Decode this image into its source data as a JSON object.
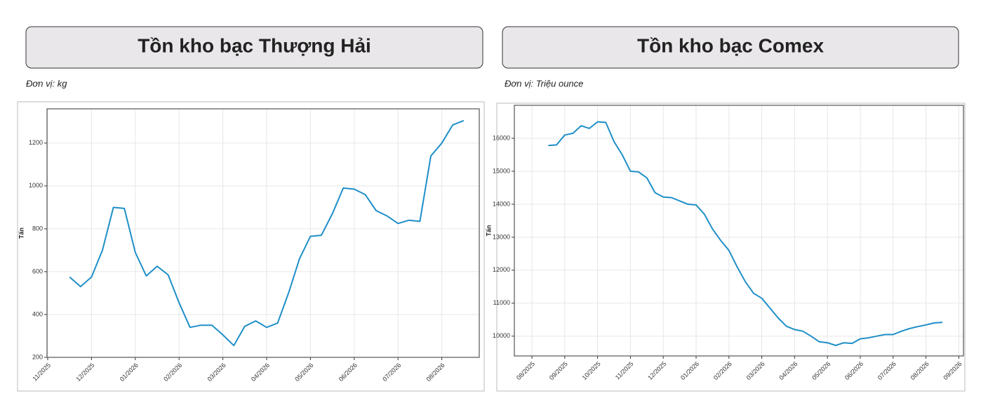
{
  "chart_data": [
    {
      "type": "line",
      "title": "Tồn kho bạc Thượng Hải",
      "subtitle": "Đơn vị: kg",
      "ylabel": "Tấn",
      "categories": [
        "11/2025",
        null,
        null,
        null,
        "12/2025",
        null,
        null,
        null,
        "01/2026",
        null,
        null,
        null,
        "02/2026",
        null,
        null,
        null,
        "03/2026",
        null,
        null,
        null,
        "04/2026",
        null,
        null,
        null,
        "05/2026",
        null,
        null,
        null,
        "06/2026",
        null,
        null,
        null,
        "07/2026",
        null,
        null,
        null,
        "08/2026",
        null,
        null
      ],
      "series": [
        {
          "color": "#1f8fc8",
          "values": [
            null,
            null,
            575,
            530,
            575,
            700,
            900,
            895,
            690,
            580,
            625,
            585,
            455,
            340,
            350,
            350,
            305,
            255,
            345,
            370,
            340,
            360,
            500,
            660,
            765,
            770,
            870,
            990,
            985,
            960,
            885,
            860,
            825,
            840,
            835,
            1140,
            1200,
            1285,
            1305
          ]
        }
      ],
      "ylim": [
        200,
        1360
      ],
      "yticks": [
        200,
        400,
        600,
        800,
        1000,
        1200
      ],
      "grid": true
    },
    {
      "type": "line",
      "title": "Tồn kho bạc Comex",
      "subtitle": "Đơn vị: Triệu ounce",
      "ylabel": "Tấn",
      "categories": [
        "08/2025",
        null,
        null,
        null,
        "09/2025",
        null,
        null,
        null,
        "10/2025",
        null,
        null,
        null,
        "11/2025",
        null,
        null,
        null,
        "12/2025",
        null,
        null,
        null,
        "01/2026",
        null,
        null,
        null,
        "02/2026",
        null,
        null,
        null,
        "03/2026",
        null,
        null,
        null,
        "04/2026",
        null,
        null,
        null,
        "05/2026",
        null,
        null,
        null,
        "06/2026",
        null,
        null,
        null,
        "07/2026",
        null,
        null,
        null,
        "08/2026",
        null,
        null,
        null,
        "09/2026"
      ],
      "series": [
        {
          "color": "#1f8fc8",
          "values": [
            null,
            null,
            15780,
            15800,
            16100,
            16150,
            16380,
            16300,
            16500,
            16480,
            15900,
            15500,
            15000,
            14980,
            14800,
            14350,
            14220,
            14200,
            14100,
            14000,
            13980,
            13700,
            13250,
            12900,
            12600,
            12100,
            11650,
            11300,
            11150,
            10850,
            10550,
            10300,
            10200,
            10150,
            10000,
            9830,
            9800,
            9720,
            9800,
            9780,
            9920,
            9950,
            10000,
            10050,
            10050,
            10150,
            10230,
            10290,
            10340,
            10400,
            10420,
            null,
            null
          ]
        }
      ],
      "ylim": [
        9400,
        17000
      ],
      "yticks": [
        10000,
        11000,
        12000,
        13000,
        14000,
        15000,
        16000
      ],
      "grid": true
    }
  ]
}
